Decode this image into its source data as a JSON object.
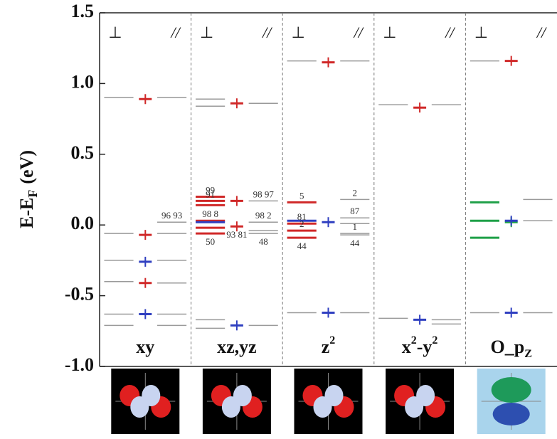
{
  "chart_data": {
    "type": "energy-levels",
    "y_label": {
      "text": "E-E",
      "sub": "F",
      "unit": "(eV)"
    },
    "ylim": [
      -1,
      1.5
    ],
    "yticks": [
      {
        "value": -1,
        "label": "-1.0"
      },
      -0.5,
      {
        "value": 0,
        "label": "0.0"
      },
      0.5,
      {
        "value": 1,
        "label": "1.0"
      },
      1.5
    ],
    "grid": false,
    "colors": {
      "gray": "#9a9a9a",
      "red": "#d02828",
      "blue": "#2f3fc0",
      "green": "#1fa048"
    },
    "panels": [
      {
        "name": [
          {
            "text": "xy"
          }
        ],
        "headers": [
          "⊥",
          "//"
        ],
        "left": [
          {
            "e": 0.9
          },
          {
            "e": -0.06
          },
          {
            "e": -0.25
          },
          {
            "e": -0.4
          },
          {
            "e": -0.63
          },
          {
            "e": -0.71
          }
        ],
        "mid": [
          {
            "e": 0.89,
            "color": "red"
          },
          {
            "e": -0.07,
            "color": "red"
          },
          {
            "e": -0.26,
            "color": "blue"
          },
          {
            "e": -0.41,
            "color": "red"
          },
          {
            "e": -0.63,
            "color": "blue"
          }
        ],
        "right": [
          {
            "e": 0.9
          },
          {
            "e": 0.02,
            "label": "96 93"
          },
          {
            "e": -0.06
          },
          {
            "e": -0.25
          },
          {
            "e": -0.41
          },
          {
            "e": -0.63
          },
          {
            "e": -0.71
          }
        ]
      },
      {
        "name": [
          {
            "text": "xz,yz"
          }
        ],
        "headers": [
          "⊥",
          "//"
        ],
        "left": [
          {
            "e": 0.89
          },
          {
            "e": 0.84
          },
          {
            "e": 0.2,
            "color": "red",
            "label": "99"
          },
          {
            "e": 0.17,
            "color": "red",
            "label": "91"
          },
          {
            "e": 0.14,
            "color": "red"
          },
          {
            "e": 0.03,
            "color": "red",
            "label": "98 8"
          },
          {
            "e": 0.02,
            "color": "blue"
          },
          {
            "e": -0.02,
            "color": "red"
          },
          {
            "e": -0.06,
            "color": "red",
            "label": "50",
            "below": true
          },
          {
            "e": -0.67
          },
          {
            "e": -0.73
          }
        ],
        "mid": [
          {
            "e": 0.86,
            "color": "red"
          },
          {
            "e": 0.17,
            "color": "red"
          },
          {
            "e": -0.01,
            "color": "red",
            "label": "93 81",
            "below": true
          },
          {
            "e": -0.71,
            "color": "blue"
          }
        ],
        "right": [
          {
            "e": 0.86
          },
          {
            "e": 0.17,
            "label": "98 97"
          },
          {
            "e": 0.02,
            "label": "98 2"
          },
          {
            "e": -0.04
          },
          {
            "e": -0.06,
            "label": "48",
            "below": true
          },
          {
            "e": -0.71
          }
        ]
      },
      {
        "name": [
          {
            "text": "z"
          },
          {
            "text": "2",
            "shift": "sup"
          }
        ],
        "headers": [
          "⊥",
          "//"
        ],
        "left": [
          {
            "e": 1.16
          },
          {
            "e": 0.16,
            "color": "red",
            "label": "5"
          },
          {
            "e": 0.03,
            "color": "blue"
          },
          {
            "e": 0.01,
            "color": "red",
            "label": "81"
          },
          {
            "e": -0.04,
            "color": "red",
            "label": "2"
          },
          {
            "e": -0.09,
            "color": "red",
            "label": "44",
            "below": true
          },
          {
            "e": -0.62
          }
        ],
        "mid": [
          {
            "e": 1.15,
            "color": "red"
          },
          {
            "e": 0.02,
            "color": "blue"
          },
          {
            "e": -0.62,
            "color": "blue"
          }
        ],
        "right": [
          {
            "e": 1.16
          },
          {
            "e": 0.18,
            "label": "2"
          },
          {
            "e": 0.05,
            "label": "87"
          },
          {
            "e": 0.01
          },
          {
            "e": -0.06,
            "label": "1"
          },
          {
            "e": -0.07,
            "label": "44",
            "below": true
          },
          {
            "e": -0.62
          }
        ]
      },
      {
        "name": [
          {
            "text": "x"
          },
          {
            "text": "2",
            "shift": "sup"
          },
          {
            "text": "-y"
          },
          {
            "text": "2",
            "shift": "sup"
          }
        ],
        "headers": [
          "⊥",
          "//"
        ],
        "left": [
          {
            "e": 0.85
          },
          {
            "e": -0.66
          }
        ],
        "mid": [
          {
            "e": 0.83,
            "color": "red"
          },
          {
            "e": -0.67,
            "color": "blue"
          }
        ],
        "right": [
          {
            "e": 0.85
          },
          {
            "e": -0.67
          },
          {
            "e": -0.7
          }
        ]
      },
      {
        "name": [
          {
            "text": "O_p"
          },
          {
            "text": "Z",
            "shift": "sub"
          }
        ],
        "headers": [
          "⊥",
          "//"
        ],
        "left": [
          {
            "e": 1.16
          },
          {
            "e": 0.16,
            "color": "green"
          },
          {
            "e": 0.03,
            "color": "green"
          },
          {
            "e": -0.09,
            "color": "green"
          },
          {
            "e": -0.62
          }
        ],
        "mid": [
          {
            "e": 1.16,
            "color": "red"
          },
          {
            "e": 0.02,
            "color": "green"
          },
          {
            "e": 0.03,
            "color": "blue"
          },
          {
            "e": -0.62,
            "color": "blue"
          }
        ],
        "right": [
          {
            "e": 0.18
          },
          {
            "e": 0.03
          },
          {
            "e": -0.62
          }
        ]
      }
    ]
  }
}
